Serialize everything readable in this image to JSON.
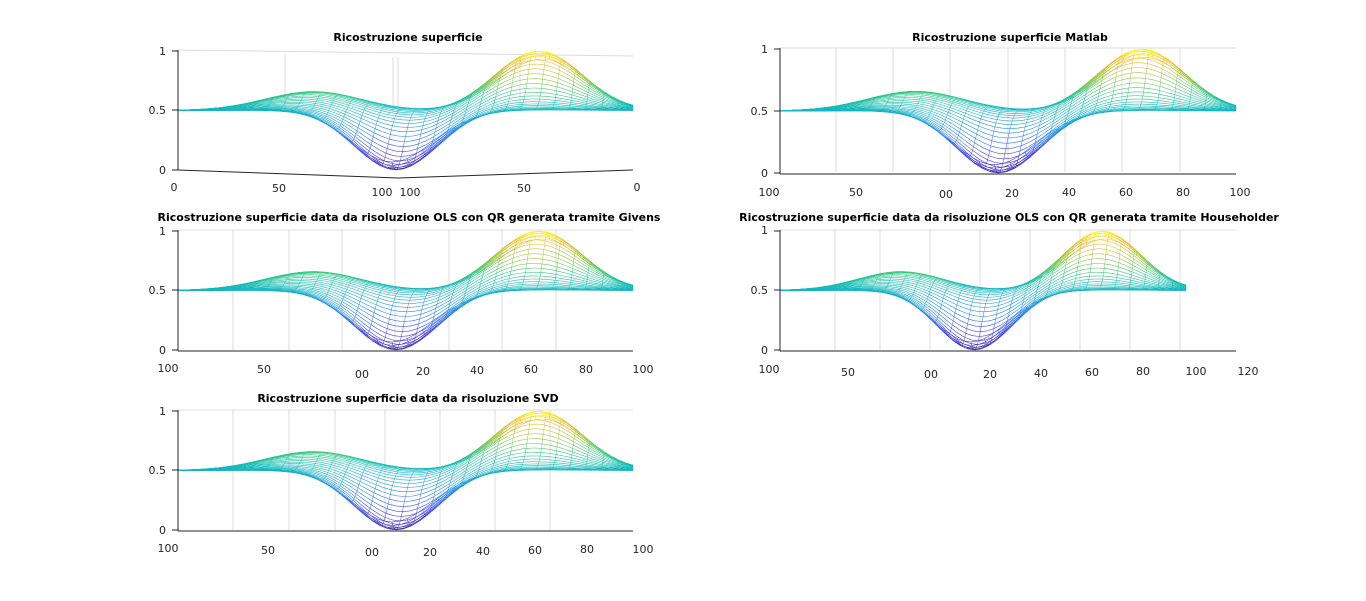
{
  "chart_data": [
    {
      "type": "surface",
      "title": "Ricostruzione superficie",
      "zticks": [
        "0",
        "0.5",
        "1"
      ],
      "zlim": [
        0,
        1
      ],
      "xticks_left": [
        "0",
        "50",
        "100"
      ],
      "xticks_right": [
        "100",
        "50",
        "0"
      ],
      "grid": true,
      "colormap": "parula",
      "surface": {
        "description_values": {
          "baseline": 0.5,
          "peak": 1.0,
          "trough": 0.0,
          "secondary_peak": 0.66
        }
      }
    },
    {
      "type": "surface",
      "title": "Ricostruzione superficie Matlab",
      "zticks": [
        "0",
        "0.5",
        "1"
      ],
      "zlim": [
        0,
        1
      ],
      "xticks_left": [
        "100",
        "50",
        "00"
      ],
      "xticks_right": [
        "20",
        "40",
        "60",
        "80",
        "100"
      ],
      "grid": true,
      "colormap": "parula",
      "surface": {
        "description_values": {
          "baseline": 0.5,
          "peak": 1.0,
          "trough": 0.0,
          "secondary_peak": 0.66
        }
      }
    },
    {
      "type": "surface",
      "title": "Ricostruzione superficie data da risoluzione OLS con QR generata tramite Givens",
      "zticks": [
        "0",
        "0.5",
        "1"
      ],
      "zlim": [
        0,
        1
      ],
      "xticks_left": [
        "100",
        "50",
        "00"
      ],
      "xticks_right": [
        "20",
        "40",
        "60",
        "80",
        "100"
      ],
      "grid": true,
      "colormap": "parula",
      "surface": {
        "description_values": {
          "baseline": 0.5,
          "peak": 1.0,
          "trough": 0.0,
          "secondary_peak": 0.66
        }
      }
    },
    {
      "type": "surface",
      "title": "Ricostruzione superficie data da risoluzione OLS con QR generata tramite Householder",
      "zticks": [
        "0",
        "0.5",
        "1"
      ],
      "zlim": [
        0,
        1
      ],
      "xticks_left": [
        "100",
        "50",
        "00"
      ],
      "xticks_right": [
        "20",
        "40",
        "60",
        "80",
        "100",
        "120"
      ],
      "grid": true,
      "colormap": "parula",
      "surface": {
        "description_values": {
          "baseline": 0.5,
          "peak": 1.0,
          "trough": 0.0,
          "secondary_peak": 0.66
        }
      }
    },
    {
      "type": "surface",
      "title": "Ricostruzione superficie data da risoluzione SVD",
      "zticks": [
        "0",
        "0.5",
        "1"
      ],
      "zlim": [
        0,
        1
      ],
      "xticks_left": [
        "100",
        "50",
        "00"
      ],
      "xticks_right": [
        "20",
        "40",
        "60",
        "80",
        "100"
      ],
      "grid": true,
      "colormap": "parula",
      "surface": {
        "description_values": {
          "baseline": 0.5,
          "peak": 1.0,
          "trough": 0.0,
          "secondary_peak": 0.66
        }
      }
    }
  ]
}
